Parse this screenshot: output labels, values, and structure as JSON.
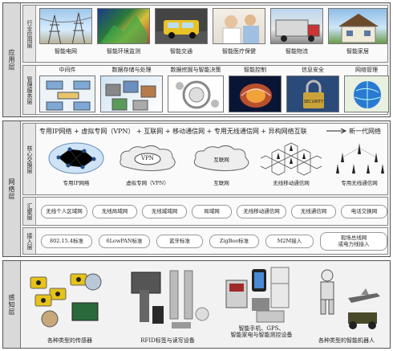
{
  "layers": {
    "application": "应用层",
    "network": "网络层",
    "perception": "感知层"
  },
  "sublayers": {
    "industry": "行业应用层",
    "management": "管理服务层",
    "core": "核心交换层",
    "aggregation": "汇聚层",
    "access": "接入层"
  },
  "industry_apps": [
    "智能电网",
    "智能环境监测",
    "智能交通",
    "智能医疗保健",
    "智能物流",
    "智能家居"
  ],
  "management_services": [
    "中间件",
    "数据存储与处理",
    "数据挖掘与智能决策",
    "智能控制",
    "信息安全",
    "网络管理"
  ],
  "core": {
    "title": "专用IP网络 + 虚拟专网（VPN） + 互联网 + 移动通信网 + 专用无线通信网 + 异构网络互联",
    "next_gen": "新一代网络",
    "cloud_vpn": "VPN",
    "cloud_internet": "互联网",
    "networks": [
      "专用IP网络",
      "虚拟专网（VPN）",
      "互联网",
      "无线移动通信网",
      "专用无线通信网"
    ]
  },
  "aggregation": [
    "无线个人区域网",
    "无线局域网",
    "无线城域网",
    "局域网",
    "无线移动通信网",
    "无线通信网",
    "电话交换网"
  ],
  "access": [
    "802.15.4标准",
    "6LowPAN标准",
    "蓝牙标准",
    "ZigBee标准",
    "M2M接入",
    "现场总线网\n或电力线接入"
  ],
  "perception": [
    "各种类型的传感器",
    "RFID标签与读写设备",
    "智能手机、GPS、\n智能家电与智能测控设备",
    "各种类型的智能机器人"
  ],
  "icons": {
    "security_badge": "SECURITY"
  }
}
